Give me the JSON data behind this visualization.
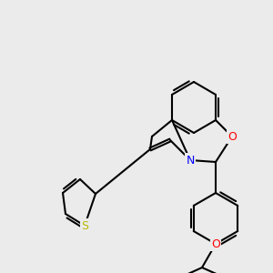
{
  "background_color": "#ebebeb",
  "bond_color": "#000000",
  "atom_colors": {
    "N": "#0000ff",
    "O": "#ff0000",
    "S": "#b8b800"
  },
  "figsize": [
    3.0,
    3.0
  ],
  "dpi": 100,
  "lw": 1.5,
  "font_size": 9
}
